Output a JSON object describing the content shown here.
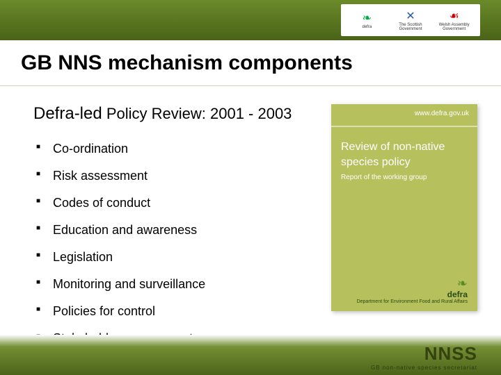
{
  "colors": {
    "band_top": "#5a7720",
    "band_bottom": "#4a6318",
    "cover_bg": "#b6c05c",
    "text": "#000000",
    "cover_text": "#ffffff"
  },
  "header": {
    "logos": [
      {
        "name": "defra",
        "label": "defra"
      },
      {
        "name": "scottish-gov",
        "label": "The Scottish Government"
      },
      {
        "name": "welsh-assembly",
        "label": "Welsh Assembly Government"
      }
    ]
  },
  "title": "GB NNS mechanism components",
  "subtitle_lead": "Defra-led",
  "subtitle_rest": " Policy Review: 2001 - 2003",
  "bullets": [
    "Co-ordination",
    "Risk assessment",
    "Codes of conduct",
    "Education and awareness",
    "Legislation",
    "Monitoring and surveillance",
    "Policies for control",
    "Stakeholder engagement"
  ],
  "cover": {
    "url": "www.defra.gov.uk",
    "title": "Review of non-native species policy",
    "subtitle": "Report of the working group",
    "footer_brand": "defra",
    "footer_tag": "Department for Environment Food and Rural Affairs"
  },
  "footer_logo": {
    "acronym": "NNSS",
    "tagline": "GB non-native species secretariat"
  }
}
